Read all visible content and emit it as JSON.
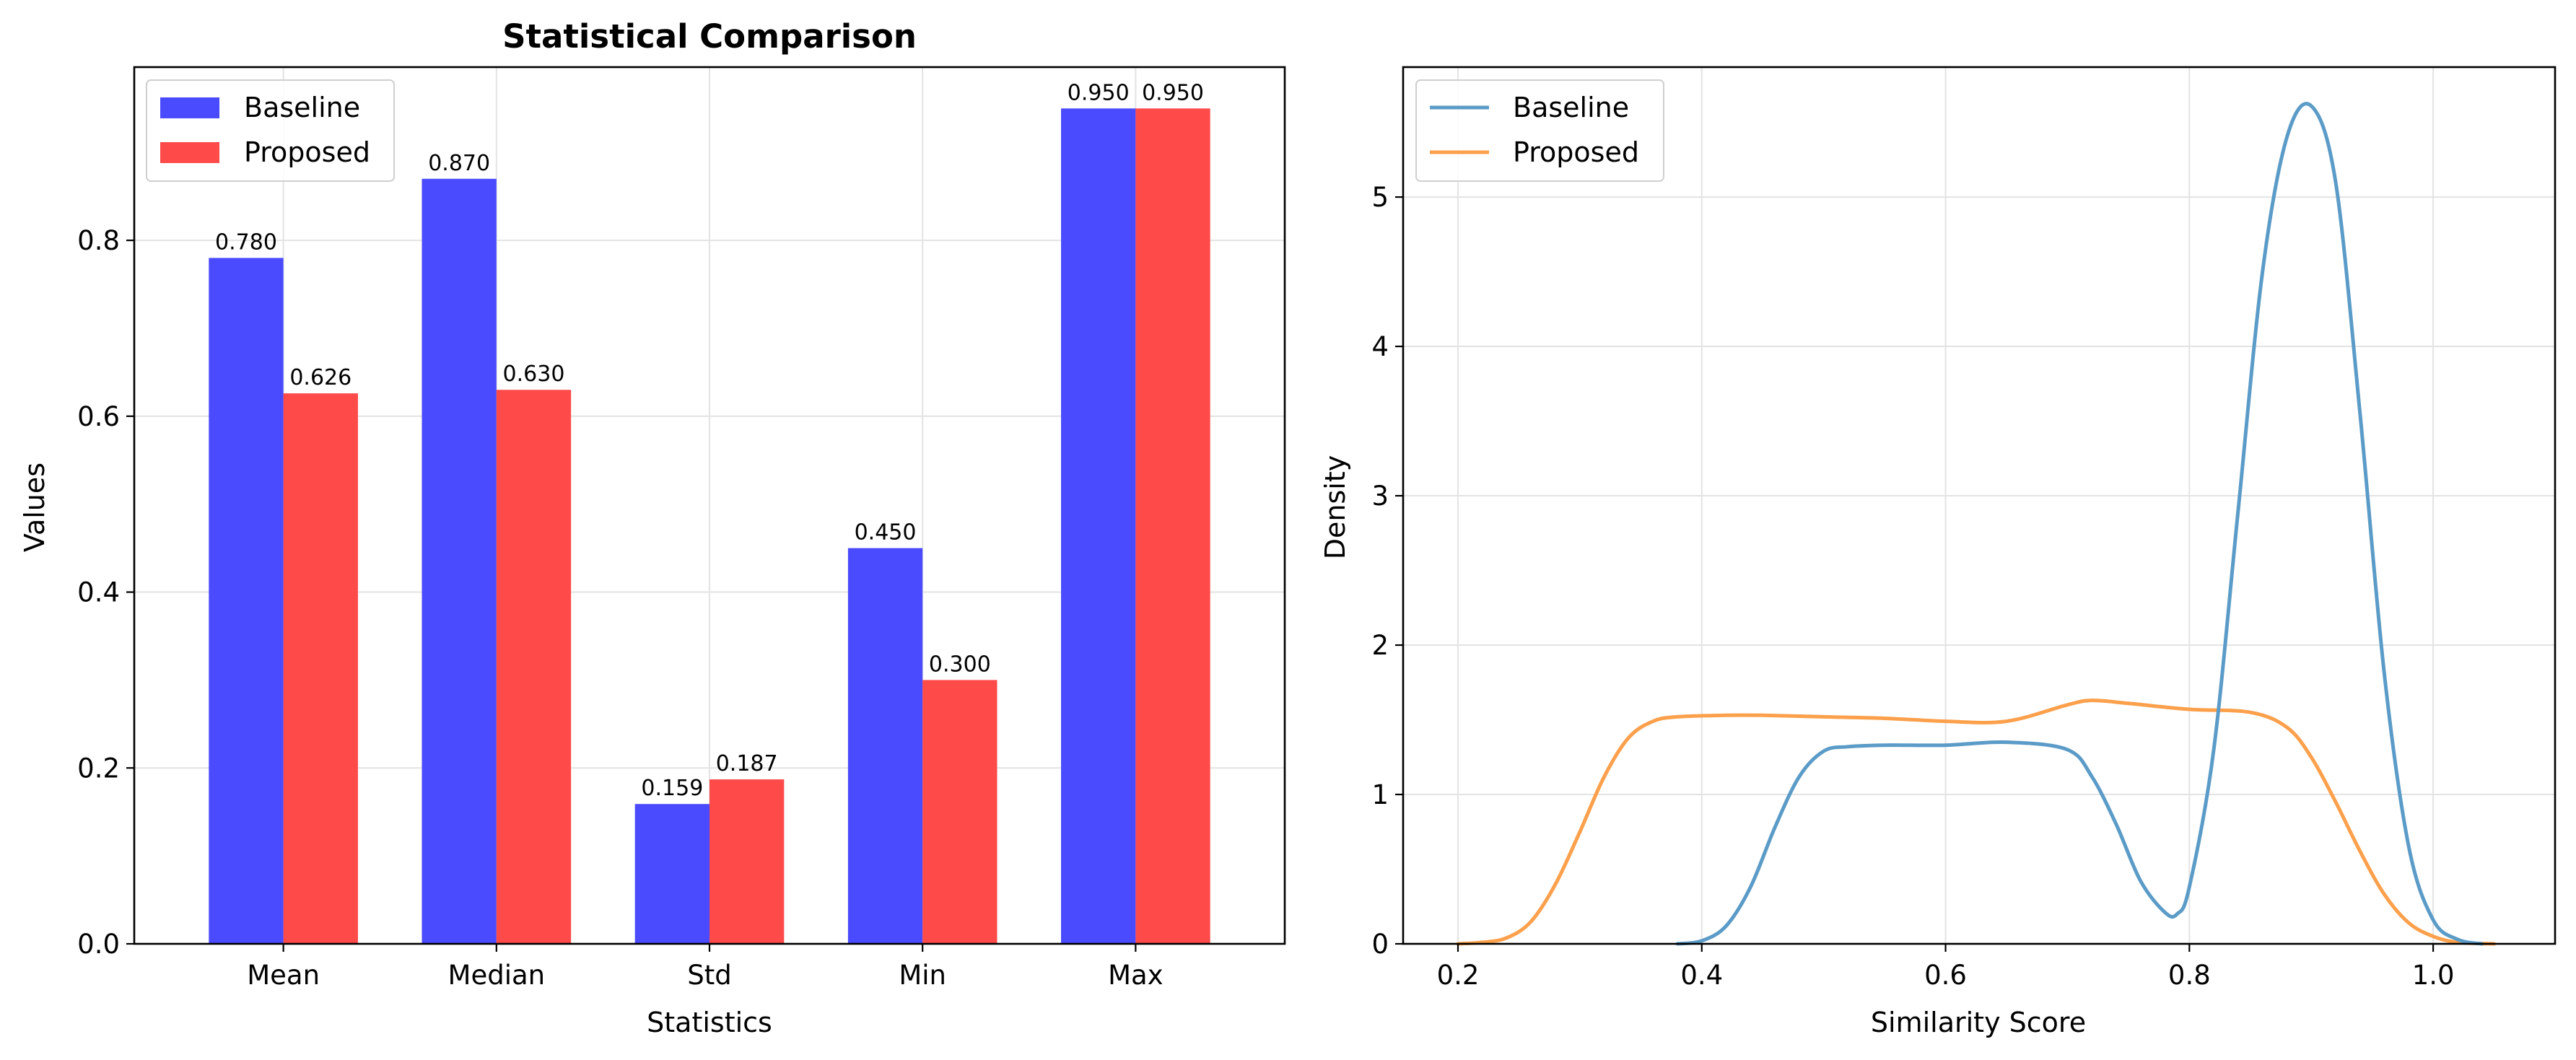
{
  "chart_data": [
    {
      "type": "bar",
      "title": "Statistical Comparison",
      "xlabel": "Statistics",
      "ylabel": "Values",
      "categories": [
        "Mean",
        "Median",
        "Std",
        "Min",
        "Max"
      ],
      "series": [
        {
          "name": "Baseline",
          "color": "#4a4aff",
          "values": [
            0.78,
            0.87,
            0.159,
            0.45,
            0.95
          ],
          "labels": [
            "0.780",
            "0.870",
            "0.159",
            "0.450",
            "0.950"
          ]
        },
        {
          "name": "Proposed",
          "color": "#ff4a4a",
          "values": [
            0.626,
            0.63,
            0.187,
            0.3,
            0.95
          ],
          "labels": [
            "0.626",
            "0.630",
            "0.187",
            "0.300",
            "0.950"
          ]
        }
      ],
      "ylim": [
        0,
        0.997
      ],
      "yticks": [
        0.0,
        0.2,
        0.4,
        0.6,
        0.8
      ],
      "ytick_labels": [
        "0.0",
        "0.2",
        "0.4",
        "0.6",
        "0.8"
      ],
      "grid": true,
      "legend": "upper-left"
    },
    {
      "type": "line",
      "title": "",
      "xlabel": "Similarity Score",
      "ylabel": "Density",
      "xlim": [
        0.155,
        1.1
      ],
      "ylim": [
        0,
        5.87
      ],
      "xticks": [
        0.2,
        0.4,
        0.6,
        0.8,
        1.0
      ],
      "xtick_labels": [
        "0.2",
        "0.4",
        "0.6",
        "0.8",
        "1.0"
      ],
      "yticks": [
        0,
        1,
        2,
        3,
        4,
        5
      ],
      "ytick_labels": [
        "0",
        "1",
        "2",
        "3",
        "4",
        "5"
      ],
      "grid": true,
      "legend": "upper-left",
      "series": [
        {
          "name": "Baseline",
          "color": "#5b9bc7",
          "x": [
            0.38,
            0.4,
            0.42,
            0.44,
            0.46,
            0.48,
            0.5,
            0.52,
            0.55,
            0.6,
            0.65,
            0.7,
            0.72,
            0.74,
            0.76,
            0.78,
            0.79,
            0.8,
            0.82,
            0.84,
            0.86,
            0.88,
            0.9,
            0.92,
            0.94,
            0.96,
            0.98,
            1.0,
            1.02,
            1.04
          ],
          "y": [
            0.0,
            0.02,
            0.12,
            0.38,
            0.78,
            1.12,
            1.29,
            1.32,
            1.33,
            1.33,
            1.35,
            1.3,
            1.12,
            0.8,
            0.42,
            0.21,
            0.2,
            0.38,
            1.3,
            2.9,
            4.5,
            5.4,
            5.61,
            5.1,
            3.55,
            1.8,
            0.65,
            0.16,
            0.03,
            0.0
          ]
        },
        {
          "name": "Proposed",
          "color": "#fca04c",
          "x": [
            0.2,
            0.22,
            0.24,
            0.26,
            0.28,
            0.3,
            0.32,
            0.34,
            0.36,
            0.38,
            0.42,
            0.45,
            0.5,
            0.55,
            0.6,
            0.65,
            0.7,
            0.72,
            0.75,
            0.8,
            0.85,
            0.88,
            0.9,
            0.92,
            0.94,
            0.96,
            0.98,
            1.0,
            1.02,
            1.05
          ],
          "y": [
            0.0,
            0.01,
            0.04,
            0.15,
            0.4,
            0.75,
            1.12,
            1.38,
            1.49,
            1.52,
            1.53,
            1.53,
            1.52,
            1.51,
            1.49,
            1.49,
            1.6,
            1.63,
            1.61,
            1.57,
            1.55,
            1.45,
            1.25,
            0.95,
            0.62,
            0.33,
            0.14,
            0.05,
            0.01,
            0.0
          ]
        }
      ]
    }
  ]
}
